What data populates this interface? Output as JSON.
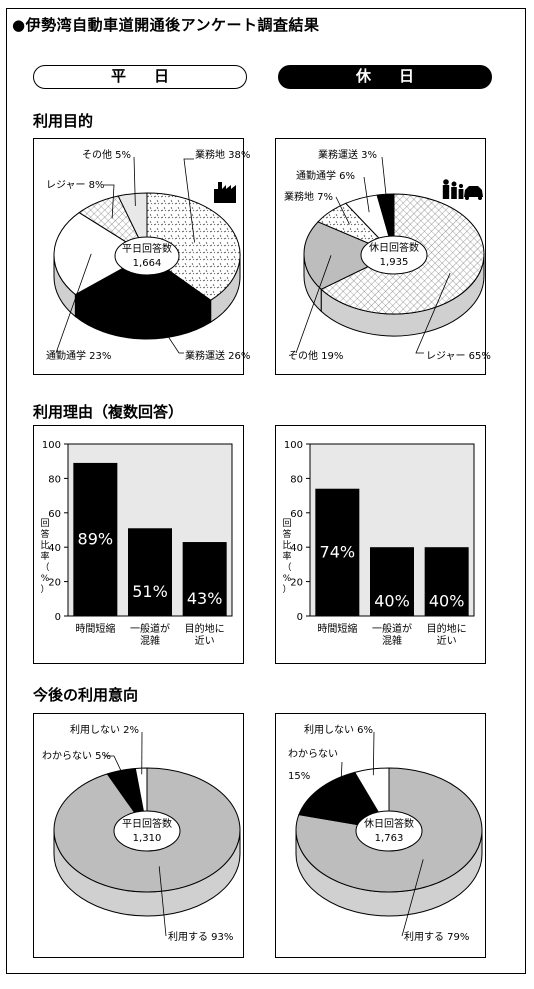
{
  "title": "●伊勢湾自動車道開通後アンケート調査結果",
  "tabs": {
    "weekday": "平日",
    "holiday": "休日"
  },
  "sections": {
    "purpose": "利用目的",
    "reason": "利用理由（複数回答）",
    "intention": "今後の利用意向"
  },
  "chart_data": [
    {
      "type": "pie",
      "section": "利用目的",
      "group": "平日",
      "center_label": "平日回答数",
      "center_value": "1,664",
      "slices": [
        {
          "label": "業務地 38%",
          "name": "業務地",
          "value": 38
        },
        {
          "label": "業務運送 26%",
          "name": "業務運送",
          "value": 26
        },
        {
          "label": "通勤通学 23%",
          "name": "通勤通学",
          "value": 23
        },
        {
          "label": "レジャー 8%",
          "name": "レジャー",
          "value": 8
        },
        {
          "label": "その他 5%",
          "name": "その他",
          "value": 5
        }
      ]
    },
    {
      "type": "pie",
      "section": "利用目的",
      "group": "休日",
      "center_label": "休日回答数",
      "center_value": "1,935",
      "slices": [
        {
          "label": "レジャー 65%",
          "name": "レジャー",
          "value": 65
        },
        {
          "label": "その他 19%",
          "name": "その他",
          "value": 19
        },
        {
          "label": "業務地 7%",
          "name": "業務地",
          "value": 7
        },
        {
          "label": "通勤通学 6%",
          "name": "通勤通学",
          "value": 6
        },
        {
          "label": "業務運送 3%",
          "name": "業務運送",
          "value": 3
        }
      ]
    },
    {
      "type": "bar",
      "section": "利用理由（複数回答）",
      "group": "平日",
      "ylabel": "回答比率（%）",
      "ylim": [
        0,
        100
      ],
      "yticks": [
        "0",
        "20",
        "40",
        "60",
        "80",
        "100"
      ],
      "categories": [
        [
          "時間短縮"
        ],
        [
          "一般道が",
          "混雑"
        ],
        [
          "目的地に",
          "近い"
        ]
      ],
      "values": [
        89,
        51,
        43
      ],
      "value_labels": [
        "89%",
        "51%",
        "43%"
      ],
      "grid": false
    },
    {
      "type": "bar",
      "section": "利用理由（複数回答）",
      "group": "休日",
      "ylabel": "回答比率（%）",
      "ylim": [
        0,
        100
      ],
      "yticks": [
        "0",
        "20",
        "40",
        "60",
        "80",
        "100"
      ],
      "categories": [
        [
          "時間短縮"
        ],
        [
          "一般道が",
          "混雑"
        ],
        [
          "目的地に",
          "近い"
        ]
      ],
      "values": [
        74,
        40,
        40
      ],
      "value_labels": [
        "74%",
        "40%",
        "40%"
      ],
      "grid": false
    },
    {
      "type": "pie",
      "section": "今後の利用意向",
      "group": "平日",
      "center_label": "平日回答数",
      "center_value": "1,310",
      "slices": [
        {
          "label": "利用する 93%",
          "name": "利用する",
          "value": 93
        },
        {
          "label": "わからない 5%",
          "name": "わからない",
          "value": 5
        },
        {
          "label": "利用しない 2%",
          "name": "利用しない",
          "value": 2
        }
      ]
    },
    {
      "type": "pie",
      "section": "今後の利用意向",
      "group": "休日",
      "center_label": "休日回答数",
      "center_value": "1,763",
      "slices": [
        {
          "label": "利用する 79%",
          "name": "利用する",
          "value": 79
        },
        {
          "label": "わからない 15%",
          "name": "わからない",
          "value": 15
        },
        {
          "label": "利用しない 6%",
          "name": "利用しない",
          "value": 6
        }
      ]
    }
  ]
}
